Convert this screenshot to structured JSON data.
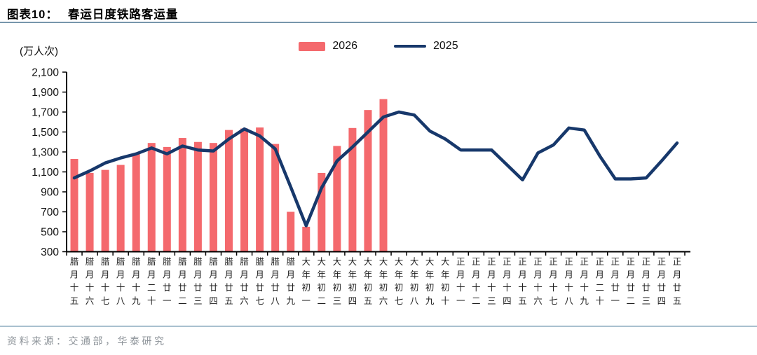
{
  "header": {
    "label": "图表10：",
    "title": "春运日度铁路客运量"
  },
  "legend": [
    {
      "label": "2026",
      "type": "bar",
      "color": "#f4696d"
    },
    {
      "label": "2025",
      "type": "line",
      "color": "#17386b"
    }
  ],
  "unit_label": "(万人次)",
  "footer": {
    "source": "资料来源：交通部，华泰研究"
  },
  "chart_data": {
    "type": "bar+line",
    "title": "春运日度铁路客运量",
    "ylabel": "(万人次)",
    "ylim": [
      300,
      2100
    ],
    "ytick_step": 200,
    "grid": false,
    "legend_position": "top",
    "categories": [
      "腊月十五",
      "腊月十六",
      "腊月十七",
      "腊月十八",
      "腊月十九",
      "腊月二十",
      "腊月廿一",
      "腊月廿二",
      "腊月廿三",
      "腊月廿四",
      "腊月廿五",
      "腊月廿六",
      "腊月廿七",
      "腊月廿八",
      "腊月廿九",
      "大年初一",
      "大年初二",
      "大年初三",
      "大年初四",
      "大年初五",
      "大年初六",
      "大年初七",
      "大年初八",
      "大年初九",
      "大年初十",
      "正月十一",
      "正月十二",
      "正月十三",
      "正月十四",
      "正月十五",
      "正月十六",
      "正月十七",
      "正月十八",
      "正月十九",
      "正月二十",
      "正月廿一",
      "正月廿二",
      "正月廿三",
      "正月廿四",
      "正月廿五"
    ],
    "series": [
      {
        "name": "2026",
        "type": "bar",
        "color": "#f4696d",
        "values": [
          1230,
          1090,
          1120,
          1170,
          1280,
          1390,
          1350,
          1440,
          1400,
          1390,
          1520,
          1535,
          1545,
          1380,
          700,
          550,
          1090,
          1360,
          1540,
          1720,
          1830,
          null,
          null,
          null,
          null,
          null,
          null,
          null,
          null,
          null,
          null,
          null,
          null,
          null,
          null,
          null,
          null,
          null,
          null,
          null
        ]
      },
      {
        "name": "2025",
        "type": "line",
        "color": "#17386b",
        "values": [
          1040,
          1110,
          1190,
          1240,
          1280,
          1340,
          1280,
          1360,
          1320,
          1310,
          1430,
          1530,
          1460,
          1330,
          950,
          560,
          940,
          1210,
          1350,
          1500,
          1650,
          1700,
          1670,
          1510,
          1430,
          1320,
          1320,
          1320,
          1170,
          1020,
          1290,
          1370,
          1540,
          1520,
          1260,
          1030,
          1030,
          1040,
          1210,
          1390
        ]
      }
    ]
  }
}
